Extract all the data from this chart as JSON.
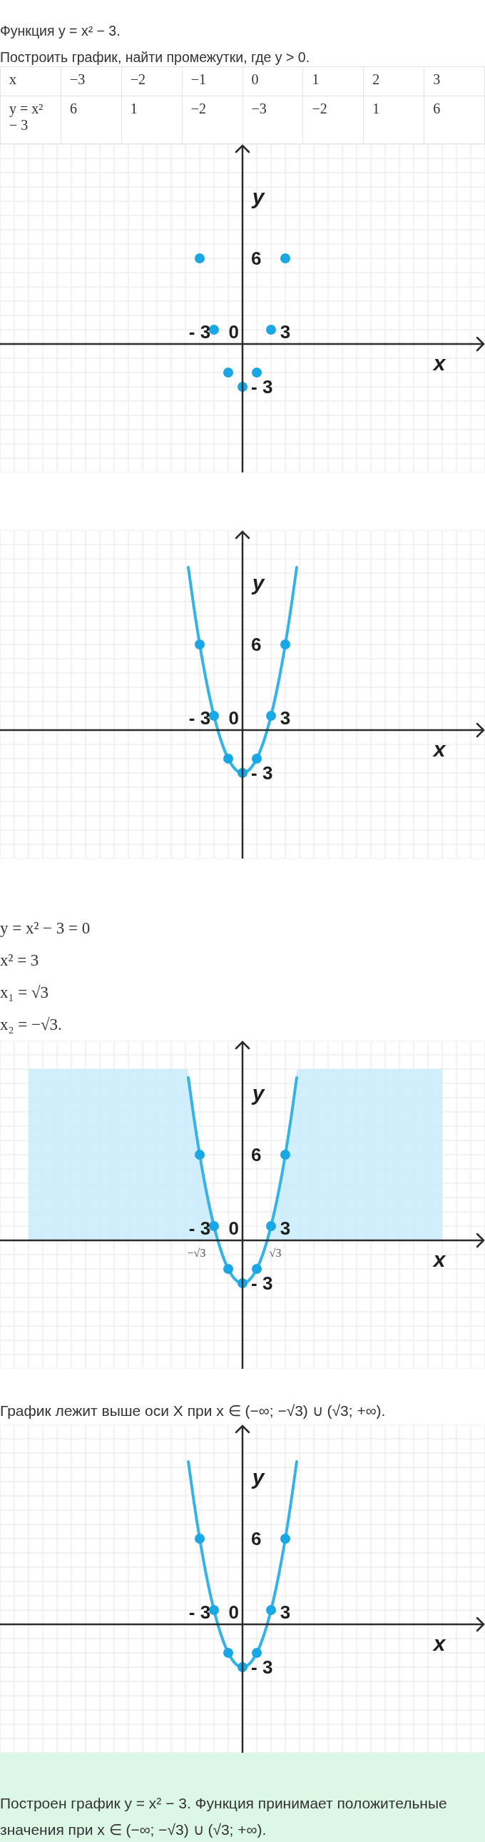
{
  "chart_data": [
    {
      "type": "other",
      "title": "Функция y = x² − 3.",
      "subtitle": "Построить график, найти промежутки, где y > 0.",
      "annotations": [
        "x",
        "−3",
        "−2",
        "−1",
        "0",
        "1",
        "2",
        "3",
        "y = x² − 3",
        "6",
        "1",
        "−2",
        "−3",
        "−2",
        "1",
        "6"
      ]
    },
    {
      "type": "scatter",
      "x": [
        -3,
        -2,
        -1,
        0,
        1,
        2,
        3
      ],
      "values": [
        6,
        1,
        -2,
        -3,
        -2,
        1,
        6
      ],
      "color": "#1aa7e6",
      "marker": "circle",
      "xlabel": "x",
      "ylabel": "y",
      "grid": true,
      "xlim": [
        -17,
        17
      ],
      "ylim": [
        -9,
        14
      ],
      "xticks": [
        {
          "value": -17,
          "label": null
        },
        {
          "value": -16,
          "label": null
        },
        {
          "value": -15,
          "label": null
        },
        {
          "value": -14,
          "label": null
        },
        {
          "value": -13,
          "label": null
        },
        {
          "value": -12,
          "label": null
        },
        {
          "value": -11,
          "label": null
        },
        {
          "value": -10,
          "label": null
        },
        {
          "value": -9,
          "label": null
        },
        {
          "value": -8,
          "label": null
        },
        {
          "value": -7,
          "label": null
        },
        {
          "value": -6,
          "label": null
        },
        {
          "value": -5,
          "label": null
        },
        {
          "value": -4,
          "label": null
        },
        {
          "value": -3,
          "label": "- 3"
        },
        {
          "value": -2,
          "label": null
        },
        {
          "value": -1,
          "label": null
        },
        {
          "value": 0,
          "label": "0"
        },
        {
          "value": 1,
          "label": null
        },
        {
          "value": 2,
          "label": null
        },
        {
          "value": 3,
          "label": "3"
        },
        {
          "value": 4,
          "label": null
        },
        {
          "value": 5,
          "label": null
        },
        {
          "value": 6,
          "label": null
        },
        {
          "value": 7,
          "label": null
        },
        {
          "value": 8,
          "label": null
        },
        {
          "value": 9,
          "label": null
        },
        {
          "value": 10,
          "label": null
        },
        {
          "value": 11,
          "label": null
        },
        {
          "value": 12,
          "label": null
        },
        {
          "value": 13,
          "label": null
        },
        {
          "value": 14,
          "label": null
        },
        {
          "value": 15,
          "label": null
        },
        {
          "value": 16,
          "label": null
        },
        {
          "value": 17,
          "label": null
        }
      ],
      "yticks": [
        {
          "value": -9,
          "label": null
        },
        {
          "value": -8,
          "label": null
        },
        {
          "value": -7,
          "label": null
        },
        {
          "value": -6,
          "label": null
        },
        {
          "value": -5,
          "label": null
        },
        {
          "value": -4,
          "label": null
        },
        {
          "value": -3,
          "label": "- 3"
        },
        {
          "value": -2,
          "label": null
        },
        {
          "value": -1,
          "label": null
        },
        {
          "value": 0,
          "label": null
        },
        {
          "value": 1,
          "label": null
        },
        {
          "value": 2,
          "label": null
        },
        {
          "value": 3,
          "label": null
        },
        {
          "value": 4,
          "label": null
        },
        {
          "value": 5,
          "label": null
        },
        {
          "value": 6,
          "label": "6"
        },
        {
          "value": 7,
          "label": null
        },
        {
          "value": 8,
          "label": null
        },
        {
          "value": 9,
          "label": null
        },
        {
          "value": 10,
          "label": null
        },
        {
          "value": 11,
          "label": null
        },
        {
          "value": 12,
          "label": null
        },
        {
          "value": 13,
          "label": null
        },
        {
          "value": 14,
          "label": null
        }
      ]
    },
    {
      "type": "line",
      "xlabel": "x",
      "ylabel": "y",
      "grid": true,
      "series": [
        {
          "type": "line",
          "color": "#35b2e8",
          "x": [
            -3.8,
            -3.5,
            -3,
            -2.5,
            -2,
            -1.5,
            -1,
            -0.5,
            0,
            0.5,
            1,
            1.5,
            2,
            2.5,
            3,
            3.5,
            3.8
          ],
          "values": [
            11.4,
            9.25,
            6,
            3.25,
            1,
            -0.75,
            -2,
            -2.75,
            -3,
            -2.75,
            -2,
            -0.75,
            1,
            3.25,
            6,
            9.25,
            11.4
          ]
        },
        {
          "type": "scatter",
          "color": "#1aa7e6",
          "marker": "circle",
          "x": [
            -3,
            -2,
            -1,
            0,
            1,
            2,
            3
          ],
          "values": [
            6,
            1,
            -2,
            -3,
            -2,
            1,
            6
          ]
        }
      ],
      "xlim": [
        -17,
        17
      ],
      "ylim": [
        -9,
        14
      ],
      "xticks": [
        {
          "value": -17,
          "label": null
        },
        {
          "value": -16,
          "label": null
        },
        {
          "value": -15,
          "label": null
        },
        {
          "value": -14,
          "label": null
        },
        {
          "value": -13,
          "label": null
        },
        {
          "value": -12,
          "label": null
        },
        {
          "value": -11,
          "label": null
        },
        {
          "value": -10,
          "label": null
        },
        {
          "value": -9,
          "label": null
        },
        {
          "value": -8,
          "label": null
        },
        {
          "value": -7,
          "label": null
        },
        {
          "value": -6,
          "label": null
        },
        {
          "value": -5,
          "label": null
        },
        {
          "value": -4,
          "label": null
        },
        {
          "value": -3,
          "label": "- 3"
        },
        {
          "value": -2,
          "label": null
        },
        {
          "value": -1,
          "label": null
        },
        {
          "value": 0,
          "label": "0"
        },
        {
          "value": 1,
          "label": null
        },
        {
          "value": 2,
          "label": null
        },
        {
          "value": 3,
          "label": "3"
        },
        {
          "value": 4,
          "label": null
        },
        {
          "value": 5,
          "label": null
        },
        {
          "value": 6,
          "label": null
        },
        {
          "value": 7,
          "label": null
        },
        {
          "value": 8,
          "label": null
        },
        {
          "value": 9,
          "label": null
        },
        {
          "value": 10,
          "label": null
        },
        {
          "value": 11,
          "label": null
        },
        {
          "value": 12,
          "label": null
        },
        {
          "value": 13,
          "label": null
        },
        {
          "value": 14,
          "label": null
        },
        {
          "value": 15,
          "label": null
        },
        {
          "value": 16,
          "label": null
        },
        {
          "value": 17,
          "label": null
        }
      ],
      "yticks": [
        {
          "value": -9,
          "label": null
        },
        {
          "value": -8,
          "label": null
        },
        {
          "value": -7,
          "label": null
        },
        {
          "value": -6,
          "label": null
        },
        {
          "value": -5,
          "label": null
        },
        {
          "value": -4,
          "label": null
        },
        {
          "value": -3,
          "label": "- 3"
        },
        {
          "value": -2,
          "label": null
        },
        {
          "value": -1,
          "label": null
        },
        {
          "value": 0,
          "label": null
        },
        {
          "value": 1,
          "label": null
        },
        {
          "value": 2,
          "label": null
        },
        {
          "value": 3,
          "label": null
        },
        {
          "value": 4,
          "label": null
        },
        {
          "value": 5,
          "label": null
        },
        {
          "value": 6,
          "label": "6"
        },
        {
          "value": 7,
          "label": null
        },
        {
          "value": 8,
          "label": null
        },
        {
          "value": 9,
          "label": null
        },
        {
          "value": 10,
          "label": null
        },
        {
          "value": 11,
          "label": null
        },
        {
          "value": 12,
          "label": null
        },
        {
          "value": 13,
          "label": null
        },
        {
          "value": 14,
          "label": null
        }
      ]
    },
    {
      "type": "line",
      "xlabel": "x",
      "ylabel": "y",
      "grid": true,
      "annotations": [
        "y = x² − 3 = 0",
        "x² = 3",
        "x₁ = √3",
        "x₂ = −√3.",
        {
          "text": "−√3",
          "x": -1.73,
          "y": 0
        },
        {
          "text": "√3",
          "x": 1.73,
          "y": 0
        }
      ],
      "series": [
        {
          "type": "area",
          "color": "#c8ebfa",
          "x": [
            -15,
            -3.87,
            -3.5,
            -3,
            -2.5,
            -2,
            -1.73
          ],
          "values": [
            12,
            12,
            9.25,
            6,
            3.25,
            1,
            0
          ]
        },
        {
          "type": "area",
          "color": "#c8ebfa",
          "x": [
            1.73,
            2,
            2.5,
            3,
            3.5,
            3.87,
            14
          ],
          "values": [
            0,
            1,
            3.25,
            6,
            9.25,
            12,
            12
          ]
        },
        {
          "type": "line",
          "color": "#35b2e8",
          "x": [
            -3.8,
            -3.5,
            -3,
            -2.5,
            -2,
            -1.5,
            -1,
            -0.5,
            0,
            0.5,
            1,
            1.5,
            2,
            2.5,
            3,
            3.5,
            3.8
          ],
          "values": [
            11.4,
            9.25,
            6,
            3.25,
            1,
            -0.75,
            -2,
            -2.75,
            -3,
            -2.75,
            -2,
            -0.75,
            1,
            3.25,
            6,
            9.25,
            11.4
          ]
        },
        {
          "type": "scatter",
          "color": "#1aa7e6",
          "marker": "circle",
          "x": [
            -3,
            -2,
            -1,
            0,
            1,
            2,
            3
          ],
          "values": [
            6,
            1,
            -2,
            -3,
            -2,
            1,
            6
          ]
        }
      ],
      "xlim": [
        -17,
        17
      ],
      "ylim": [
        -9,
        14
      ],
      "xticks": [
        {
          "value": -17,
          "label": null
        },
        {
          "value": -16,
          "label": null
        },
        {
          "value": -15,
          "label": null
        },
        {
          "value": -14,
          "label": null
        },
        {
          "value": -13,
          "label": null
        },
        {
          "value": -12,
          "label": null
        },
        {
          "value": -11,
          "label": null
        },
        {
          "value": -10,
          "label": null
        },
        {
          "value": -9,
          "label": null
        },
        {
          "value": -8,
          "label": null
        },
        {
          "value": -7,
          "label": null
        },
        {
          "value": -6,
          "label": null
        },
        {
          "value": -5,
          "label": null
        },
        {
          "value": -4,
          "label": null
        },
        {
          "value": -3,
          "label": "- 3"
        },
        {
          "value": -2,
          "label": null
        },
        {
          "value": -1,
          "label": null
        },
        {
          "value": 0,
          "label": "0"
        },
        {
          "value": 1,
          "label": null
        },
        {
          "value": 2,
          "label": null
        },
        {
          "value": 3,
          "label": "3"
        },
        {
          "value": 4,
          "label": null
        },
        {
          "value": 5,
          "label": null
        },
        {
          "value": 6,
          "label": null
        },
        {
          "value": 7,
          "label": null
        },
        {
          "value": 8,
          "label": null
        },
        {
          "value": 9,
          "label": null
        },
        {
          "value": 10,
          "label": null
        },
        {
          "value": 11,
          "label": null
        },
        {
          "value": 12,
          "label": null
        },
        {
          "value": 13,
          "label": null
        },
        {
          "value": 14,
          "label": null
        },
        {
          "value": 15,
          "label": null
        },
        {
          "value": 16,
          "label": null
        },
        {
          "value": 17,
          "label": null
        }
      ],
      "yticks": [
        {
          "value": -9,
          "label": null
        },
        {
          "value": -8,
          "label": null
        },
        {
          "value": -7,
          "label": null
        },
        {
          "value": -6,
          "label": null
        },
        {
          "value": -5,
          "label": null
        },
        {
          "value": -4,
          "label": null
        },
        {
          "value": -3,
          "label": "- 3"
        },
        {
          "value": -2,
          "label": null
        },
        {
          "value": -1,
          "label": null
        },
        {
          "value": 0,
          "label": null
        },
        {
          "value": 1,
          "label": null
        },
        {
          "value": 2,
          "label": null
        },
        {
          "value": 3,
          "label": null
        },
        {
          "value": 4,
          "label": null
        },
        {
          "value": 5,
          "label": null
        },
        {
          "value": 6,
          "label": "6"
        },
        {
          "value": 7,
          "label": null
        },
        {
          "value": 8,
          "label": null
        },
        {
          "value": 9,
          "label": null
        },
        {
          "value": 10,
          "label": null
        },
        {
          "value": 11,
          "label": null
        },
        {
          "value": 12,
          "label": null
        },
        {
          "value": 13,
          "label": null
        },
        {
          "value": 14,
          "label": null
        }
      ]
    },
    {
      "type": "line",
      "title": "График лежит выше оси X при x ∈ (−∞; −√3) ∪ (√3; +∞).",
      "xlabel": "x",
      "ylabel": "y",
      "grid": true,
      "series": [
        {
          "type": "line",
          "color": "#35b2e8",
          "x": [
            -3.8,
            -3.5,
            -3,
            -2.5,
            -2,
            -1.5,
            -1,
            -0.5,
            0,
            0.5,
            1,
            1.5,
            2,
            2.5,
            3,
            3.5,
            3.8
          ],
          "values": [
            11.4,
            9.25,
            6,
            3.25,
            1,
            -0.75,
            -2,
            -2.75,
            -3,
            -2.75,
            -2,
            -0.75,
            1,
            3.25,
            6,
            9.25,
            11.4
          ]
        },
        {
          "type": "scatter",
          "color": "#1aa7e6",
          "marker": "circle",
          "x": [
            -3,
            -2,
            -1,
            0,
            1,
            2,
            3
          ],
          "values": [
            6,
            1,
            -2,
            -3,
            -2,
            1,
            6
          ]
        }
      ],
      "xlim": [
        -17,
        17
      ],
      "ylim": [
        -9,
        14
      ],
      "xticks": [
        {
          "value": -17,
          "label": null
        },
        {
          "value": -16,
          "label": null
        },
        {
          "value": -15,
          "label": null
        },
        {
          "value": -14,
          "label": null
        },
        {
          "value": -13,
          "label": null
        },
        {
          "value": -12,
          "label": null
        },
        {
          "value": -11,
          "label": null
        },
        {
          "value": -10,
          "label": null
        },
        {
          "value": -9,
          "label": null
        },
        {
          "value": -8,
          "label": null
        },
        {
          "value": -7,
          "label": null
        },
        {
          "value": -6,
          "label": null
        },
        {
          "value": -5,
          "label": null
        },
        {
          "value": -4,
          "label": null
        },
        {
          "value": -3,
          "label": "- 3"
        },
        {
          "value": -2,
          "label": null
        },
        {
          "value": -1,
          "label": null
        },
        {
          "value": 0,
          "label": "0"
        },
        {
          "value": 1,
          "label": null
        },
        {
          "value": 2,
          "label": null
        },
        {
          "value": 3,
          "label": "3"
        },
        {
          "value": 4,
          "label": null
        },
        {
          "value": 5,
          "label": null
        },
        {
          "value": 6,
          "label": null
        },
        {
          "value": 7,
          "label": null
        },
        {
          "value": 8,
          "label": null
        },
        {
          "value": 9,
          "label": null
        },
        {
          "value": 10,
          "label": null
        },
        {
          "value": 11,
          "label": null
        },
        {
          "value": 12,
          "label": null
        },
        {
          "value": 13,
          "label": null
        },
        {
          "value": 14,
          "label": null
        },
        {
          "value": 15,
          "label": null
        },
        {
          "value": 16,
          "label": null
        },
        {
          "value": 17,
          "label": null
        }
      ],
      "yticks": [
        {
          "value": -9,
          "label": null
        },
        {
          "value": -8,
          "label": null
        },
        {
          "value": -7,
          "label": null
        },
        {
          "value": -6,
          "label": null
        },
        {
          "value": -5,
          "label": null
        },
        {
          "value": -4,
          "label": null
        },
        {
          "value": -3,
          "label": "- 3"
        },
        {
          "value": -2,
          "label": null
        },
        {
          "value": -1,
          "label": null
        },
        {
          "value": 0,
          "label": null
        },
        {
          "value": 1,
          "label": null
        },
        {
          "value": 2,
          "label": null
        },
        {
          "value": 3,
          "label": null
        },
        {
          "value": 4,
          "label": null
        },
        {
          "value": 5,
          "label": null
        },
        {
          "value": 6,
          "label": "6"
        },
        {
          "value": 7,
          "label": null
        },
        {
          "value": 8,
          "label": null
        },
        {
          "value": 9,
          "label": null
        },
        {
          "value": 10,
          "label": null
        },
        {
          "value": 11,
          "label": null
        },
        {
          "value": 12,
          "label": null
        },
        {
          "value": 13,
          "label": null
        },
        {
          "value": 14,
          "label": null
        }
      ]
    },
    {
      "type": "other",
      "title": "Построен график y = x² − 3. Функция принимает положительные значения при x ∈ (−∞; −√3) ∪ (√3; +∞).",
      "color": "#dcf7e6"
    }
  ]
}
